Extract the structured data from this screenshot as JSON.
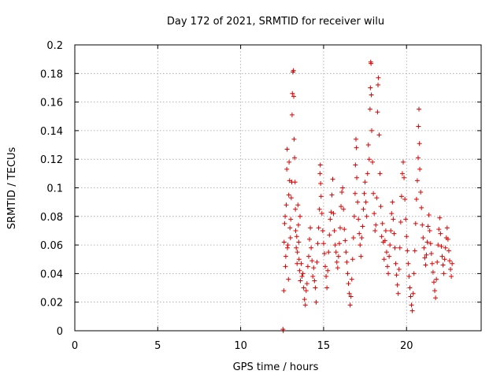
{
  "chart_data": {
    "type": "scatter",
    "title": "Day 172 of 2021, SRMTID for receiver wilu",
    "xlabel": "GPS time / hours",
    "ylabel": "SRMTID / TECUs",
    "xlim": [
      0,
      24.5
    ],
    "ylim": [
      0,
      0.2
    ],
    "xticks": [
      0,
      5,
      10,
      15,
      20
    ],
    "yticks": [
      0,
      0.02,
      0.04,
      0.06,
      0.08,
      0.1,
      0.12,
      0.14,
      0.16,
      0.18,
      0.2
    ],
    "xtick_labels": [
      "0",
      "5",
      "10",
      "15",
      "20"
    ],
    "ytick_labels": [
      "0",
      "0.02",
      "0.04",
      "0.06",
      "0.08",
      "0.1",
      "0.12",
      "0.14",
      "0.16",
      "0.18",
      "0.2"
    ],
    "grid": true,
    "marker": "plus",
    "color": "#e00000",
    "series": [
      {
        "name": "SRMTID",
        "points": [
          [
            12.55,
            0.001
          ],
          [
            12.57,
            0.0
          ],
          [
            12.6,
            0.028
          ],
          [
            12.62,
            0.062
          ],
          [
            12.65,
            0.075
          ],
          [
            12.68,
            0.08
          ],
          [
            12.7,
            0.045
          ],
          [
            12.72,
            0.052
          ],
          [
            12.75,
            0.088
          ],
          [
            12.78,
            0.113
          ],
          [
            12.8,
            0.127
          ],
          [
            12.82,
            0.058
          ],
          [
            12.85,
            0.06
          ],
          [
            12.88,
            0.036
          ],
          [
            12.9,
            0.095
          ],
          [
            12.92,
            0.118
          ],
          [
            12.95,
            0.105
          ],
          [
            12.97,
            0.072
          ],
          [
            13.0,
            0.065
          ],
          [
            13.02,
            0.078
          ],
          [
            13.05,
            0.093
          ],
          [
            13.08,
            0.104
          ],
          [
            13.1,
            0.151
          ],
          [
            13.12,
            0.166
          ],
          [
            13.15,
            0.181
          ],
          [
            13.18,
            0.182
          ],
          [
            13.2,
            0.164
          ],
          [
            13.22,
            0.134
          ],
          [
            13.25,
            0.121
          ],
          [
            13.28,
            0.104
          ],
          [
            13.3,
            0.085
          ],
          [
            13.32,
            0.07
          ],
          [
            13.35,
            0.058
          ],
          [
            13.38,
            0.066
          ],
          [
            13.4,
            0.047
          ],
          [
            13.42,
            0.055
          ],
          [
            13.45,
            0.088
          ],
          [
            13.48,
            0.074
          ],
          [
            13.5,
            0.062
          ],
          [
            13.52,
            0.05
          ],
          [
            13.55,
            0.042
          ],
          [
            13.58,
            0.08
          ],
          [
            13.6,
            0.035
          ],
          [
            13.65,
            0.047
          ],
          [
            13.7,
            0.038
          ],
          [
            13.75,
            0.04
          ],
          [
            13.8,
            0.03
          ],
          [
            13.85,
            0.022
          ],
          [
            13.9,
            0.018
          ],
          [
            13.95,
            0.028
          ],
          [
            14.0,
            0.033
          ],
          [
            14.05,
            0.045
          ],
          [
            14.1,
            0.052
          ],
          [
            14.15,
            0.064
          ],
          [
            14.2,
            0.072
          ],
          [
            14.25,
            0.058
          ],
          [
            14.3,
            0.049
          ],
          [
            14.35,
            0.038
          ],
          [
            14.4,
            0.044
          ],
          [
            14.45,
            0.035
          ],
          [
            14.5,
            0.03
          ],
          [
            14.55,
            0.02
          ],
          [
            14.6,
            0.048
          ],
          [
            14.65,
            0.061
          ],
          [
            14.7,
            0.072
          ],
          [
            14.75,
            0.085
          ],
          [
            14.78,
            0.11
          ],
          [
            14.8,
            0.116
          ],
          [
            14.82,
            0.103
          ],
          [
            14.85,
            0.094
          ],
          [
            14.9,
            0.082
          ],
          [
            14.95,
            0.07
          ],
          [
            15.0,
            0.061
          ],
          [
            15.05,
            0.054
          ],
          [
            15.1,
            0.045
          ],
          [
            15.15,
            0.038
          ],
          [
            15.2,
            0.03
          ],
          [
            15.25,
            0.042
          ],
          [
            15.3,
            0.055
          ],
          [
            15.35,
            0.067
          ],
          [
            15.4,
            0.078
          ],
          [
            15.45,
            0.083
          ],
          [
            15.5,
            0.095
          ],
          [
            15.55,
            0.106
          ],
          [
            15.6,
            0.082
          ],
          [
            15.65,
            0.07
          ],
          [
            15.7,
            0.06
          ],
          [
            15.75,
            0.055
          ],
          [
            15.8,
            0.048
          ],
          [
            15.85,
            0.044
          ],
          [
            15.9,
            0.052
          ],
          [
            15.95,
            0.061
          ],
          [
            16.0,
            0.072
          ],
          [
            16.05,
            0.087
          ],
          [
            16.1,
            0.097
          ],
          [
            16.15,
            0.1
          ],
          [
            16.2,
            0.085
          ],
          [
            16.25,
            0.071
          ],
          [
            16.3,
            0.063
          ],
          [
            16.35,
            0.055
          ],
          [
            16.4,
            0.048
          ],
          [
            16.45,
            0.04
          ],
          [
            16.5,
            0.033
          ],
          [
            16.55,
            0.026
          ],
          [
            16.6,
            0.018
          ],
          [
            16.65,
            0.024
          ],
          [
            16.7,
            0.036
          ],
          [
            16.75,
            0.05
          ],
          [
            16.8,
            0.065
          ],
          [
            16.85,
            0.08
          ],
          [
            16.9,
            0.096
          ],
          [
            16.92,
            0.116
          ],
          [
            16.95,
            0.134
          ],
          [
            16.98,
            0.128
          ],
          [
            17.0,
            0.107
          ],
          [
            17.05,
            0.09
          ],
          [
            17.1,
            0.078
          ],
          [
            17.15,
            0.068
          ],
          [
            17.2,
            0.06
          ],
          [
            17.25,
            0.052
          ],
          [
            17.3,
            0.065
          ],
          [
            17.35,
            0.073
          ],
          [
            17.4,
            0.085
          ],
          [
            17.45,
            0.096
          ],
          [
            17.5,
            0.104
          ],
          [
            17.55,
            0.09
          ],
          [
            17.6,
            0.08
          ],
          [
            17.65,
            0.11
          ],
          [
            17.7,
            0.13
          ],
          [
            17.75,
            0.12
          ],
          [
            17.8,
            0.155
          ],
          [
            17.82,
            0.17
          ],
          [
            17.84,
            0.188
          ],
          [
            17.86,
            0.187
          ],
          [
            17.88,
            0.165
          ],
          [
            17.9,
            0.14
          ],
          [
            17.95,
            0.118
          ],
          [
            18.0,
            0.096
          ],
          [
            18.05,
            0.082
          ],
          [
            18.1,
            0.07
          ],
          [
            18.15,
            0.074
          ],
          [
            18.2,
            0.093
          ],
          [
            18.25,
            0.153
          ],
          [
            18.28,
            0.172
          ],
          [
            18.3,
            0.177
          ],
          [
            18.35,
            0.137
          ],
          [
            18.4,
            0.11
          ],
          [
            18.45,
            0.087
          ],
          [
            18.5,
            0.066
          ],
          [
            18.55,
            0.075
          ],
          [
            18.6,
            0.062
          ],
          [
            18.65,
            0.05
          ],
          [
            18.7,
            0.063
          ],
          [
            18.75,
            0.07
          ],
          [
            18.8,
            0.055
          ],
          [
            18.85,
            0.045
          ],
          [
            18.9,
            0.04
          ],
          [
            18.95,
            0.052
          ],
          [
            19.0,
            0.06
          ],
          [
            19.05,
            0.07
          ],
          [
            19.1,
            0.082
          ],
          [
            19.15,
            0.09
          ],
          [
            19.2,
            0.078
          ],
          [
            19.25,
            0.068
          ],
          [
            19.3,
            0.058
          ],
          [
            19.35,
            0.047
          ],
          [
            19.4,
            0.039
          ],
          [
            19.45,
            0.032
          ],
          [
            19.5,
            0.026
          ],
          [
            19.55,
            0.043
          ],
          [
            19.6,
            0.058
          ],
          [
            19.65,
            0.076
          ],
          [
            19.7,
            0.094
          ],
          [
            19.75,
            0.11
          ],
          [
            19.8,
            0.118
          ],
          [
            19.85,
            0.107
          ],
          [
            19.9,
            0.092
          ],
          [
            19.95,
            0.078
          ],
          [
            20.0,
            0.066
          ],
          [
            20.05,
            0.056
          ],
          [
            20.1,
            0.047
          ],
          [
            20.15,
            0.038
          ],
          [
            20.2,
            0.03
          ],
          [
            20.25,
            0.024
          ],
          [
            20.3,
            0.018
          ],
          [
            20.35,
            0.014
          ],
          [
            20.4,
            0.026
          ],
          [
            20.45,
            0.04
          ],
          [
            20.5,
            0.056
          ],
          [
            20.55,
            0.075
          ],
          [
            20.6,
            0.092
          ],
          [
            20.65,
            0.105
          ],
          [
            20.7,
            0.121
          ],
          [
            20.72,
            0.143
          ],
          [
            20.75,
            0.155
          ],
          [
            20.78,
            0.131
          ],
          [
            20.8,
            0.113
          ],
          [
            20.85,
            0.097
          ],
          [
            20.9,
            0.086
          ],
          [
            20.95,
            0.074
          ],
          [
            21.0,
            0.065
          ],
          [
            21.05,
            0.058
          ],
          [
            21.1,
            0.051
          ],
          [
            21.15,
            0.046
          ],
          [
            21.2,
            0.053
          ],
          [
            21.25,
            0.062
          ],
          [
            21.3,
            0.073
          ],
          [
            21.35,
            0.081
          ],
          [
            21.4,
            0.07
          ],
          [
            21.45,
            0.061
          ],
          [
            21.5,
            0.054
          ],
          [
            21.55,
            0.047
          ],
          [
            21.6,
            0.041
          ],
          [
            21.65,
            0.034
          ],
          [
            21.7,
            0.028
          ],
          [
            21.75,
            0.023
          ],
          [
            21.8,
            0.036
          ],
          [
            21.85,
            0.048
          ],
          [
            21.9,
            0.06
          ],
          [
            21.95,
            0.071
          ],
          [
            22.0,
            0.079
          ],
          [
            22.05,
            0.068
          ],
          [
            22.1,
            0.059
          ],
          [
            22.15,
            0.052
          ],
          [
            22.2,
            0.046
          ],
          [
            22.25,
            0.04
          ],
          [
            22.3,
            0.05
          ],
          [
            22.35,
            0.058
          ],
          [
            22.4,
            0.065
          ],
          [
            22.45,
            0.072
          ],
          [
            22.5,
            0.064
          ],
          [
            22.55,
            0.056
          ],
          [
            22.6,
            0.049
          ],
          [
            22.65,
            0.043
          ],
          [
            22.7,
            0.038
          ],
          [
            22.75,
            0.047
          ]
        ]
      }
    ]
  }
}
